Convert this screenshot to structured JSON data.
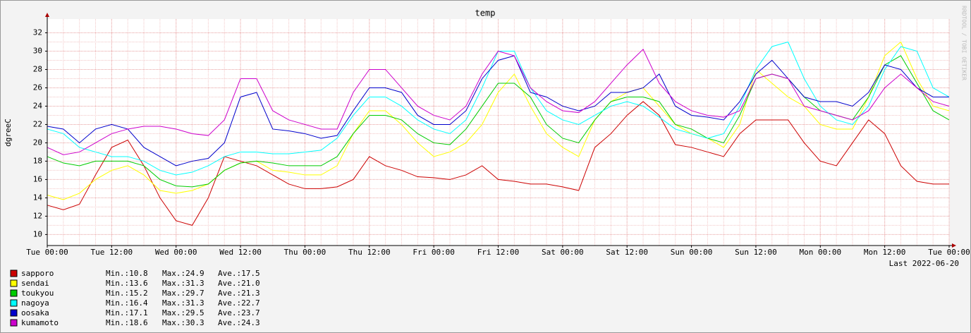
{
  "chart_data": {
    "type": "line",
    "title": "temp",
    "y_label": "dgreeC",
    "footer": "Last 2022-06-20",
    "watermark": "RRDTOOL / TOBI OETIKER",
    "x": [
      "Tue 00:00",
      "Tue 03:00",
      "Tue 06:00",
      "Tue 09:00",
      "Tue 12:00",
      "Tue 15:00",
      "Tue 18:00",
      "Tue 21:00",
      "Wed 00:00",
      "Wed 03:00",
      "Wed 06:00",
      "Wed 09:00",
      "Wed 12:00",
      "Wed 15:00",
      "Wed 18:00",
      "Wed 21:00",
      "Thu 00:00",
      "Thu 03:00",
      "Thu 06:00",
      "Thu 09:00",
      "Thu 12:00",
      "Thu 15:00",
      "Thu 18:00",
      "Thu 21:00",
      "Fri 00:00",
      "Fri 03:00",
      "Fri 06:00",
      "Fri 09:00",
      "Fri 12:00",
      "Fri 15:00",
      "Fri 18:00",
      "Fri 21:00",
      "Sat 00:00",
      "Sat 03:00",
      "Sat 06:00",
      "Sat 09:00",
      "Sat 12:00",
      "Sat 15:00",
      "Sat 18:00",
      "Sat 21:00",
      "Sun 00:00",
      "Sun 03:00",
      "Sun 06:00",
      "Sun 09:00",
      "Sun 12:00",
      "Sun 15:00",
      "Sun 18:00",
      "Sun 21:00",
      "Mon 00:00",
      "Mon 03:00",
      "Mon 06:00",
      "Mon 09:00",
      "Mon 12:00",
      "Mon 15:00",
      "Mon 18:00",
      "Mon 21:00",
      "Tue 00:00"
    ],
    "xticks": [
      "Tue 00:00",
      "Tue 12:00",
      "Wed 00:00",
      "Wed 12:00",
      "Thu 00:00",
      "Thu 12:00",
      "Fri 00:00",
      "Fri 12:00",
      "Sat 00:00",
      "Sat 12:00",
      "Sun 00:00",
      "Sun 12:00",
      "Mon 00:00",
      "Mon 12:00",
      "Tue 00:00"
    ],
    "ylim": [
      8.8,
      33.5
    ],
    "yticks": [
      10,
      12,
      14,
      16,
      18,
      20,
      22,
      24,
      26,
      28,
      30,
      32
    ],
    "grid": true,
    "series": [
      {
        "name": "sapporo",
        "color": "#cc0000",
        "stats": [
          {
            "value": 10.8,
            "label": "Min.:10.8"
          },
          {
            "value": 24.9,
            "label": "Max.:24.9"
          },
          {
            "value": 17.5,
            "label": "Ave.:17.5"
          }
        ],
        "values": [
          13.2,
          12.7,
          13.3,
          16.5,
          19.5,
          20.3,
          17.5,
          14.0,
          11.5,
          11.0,
          14.0,
          18.5,
          18.0,
          17.5,
          16.5,
          15.5,
          15.0,
          15.0,
          15.2,
          16.0,
          18.5,
          17.5,
          17.0,
          16.3,
          16.2,
          16.0,
          16.5,
          17.5,
          16.0,
          15.8,
          15.5,
          15.5,
          15.2,
          14.8,
          19.5,
          21.0,
          23.0,
          24.5,
          23.0,
          19.8,
          19.5,
          19.0,
          18.5,
          21.0,
          22.5,
          22.5,
          22.5,
          20.0,
          18.0,
          17.5,
          20.0,
          22.5,
          21.0,
          17.5,
          15.8,
          15.5,
          15.5
        ]
      },
      {
        "name": "sendai",
        "color": "#ffff00",
        "stats": [
          {
            "value": 13.6,
            "label": "Min.:13.6"
          },
          {
            "value": 31.3,
            "label": "Max.:31.3"
          },
          {
            "value": 21.0,
            "label": "Ave.:21.0"
          }
        ],
        "values": [
          14.3,
          13.8,
          14.5,
          16.0,
          17.0,
          17.5,
          16.5,
          14.8,
          14.5,
          14.8,
          15.5,
          17.0,
          17.8,
          18.0,
          17.0,
          16.8,
          16.5,
          16.5,
          17.5,
          21.0,
          23.5,
          23.5,
          22.0,
          20.0,
          18.5,
          19.0,
          20.0,
          22.0,
          25.5,
          27.5,
          24.0,
          21.0,
          19.5,
          18.5,
          22.5,
          24.5,
          25.5,
          26.0,
          24.0,
          22.0,
          21.0,
          20.5,
          19.5,
          22.0,
          28.0,
          26.5,
          25.0,
          24.0,
          22.0,
          21.5,
          21.5,
          25.0,
          29.5,
          31.0,
          27.0,
          24.0,
          23.5
        ]
      },
      {
        "name": "toukyou",
        "color": "#00cc00",
        "stats": [
          {
            "value": 15.2,
            "label": "Min.:15.2"
          },
          {
            "value": 29.7,
            "label": "Max.:29.7"
          },
          {
            "value": 21.3,
            "label": "Ave.:21.3"
          }
        ],
        "values": [
          18.5,
          17.8,
          17.5,
          18.0,
          18.0,
          18.0,
          17.5,
          16.0,
          15.3,
          15.2,
          15.5,
          17.0,
          17.8,
          18.0,
          17.8,
          17.5,
          17.5,
          17.5,
          18.5,
          21.0,
          23.0,
          23.0,
          22.5,
          21.0,
          20.0,
          19.8,
          21.5,
          24.0,
          26.5,
          26.5,
          25.0,
          22.0,
          20.5,
          20.0,
          22.5,
          24.5,
          25.0,
          25.0,
          24.5,
          22.0,
          21.5,
          20.5,
          20.0,
          23.0,
          27.0,
          27.5,
          27.0,
          25.0,
          23.5,
          23.0,
          22.5,
          25.0,
          28.5,
          29.5,
          26.5,
          23.5,
          22.5
        ]
      },
      {
        "name": "nagoya",
        "color": "#00ffff",
        "stats": [
          {
            "value": 16.4,
            "label": "Min.:16.4"
          },
          {
            "value": 31.3,
            "label": "Max.:31.3"
          },
          {
            "value": 22.7,
            "label": "Ave.:22.7"
          }
        ],
        "values": [
          21.5,
          21.0,
          19.5,
          19.0,
          18.5,
          18.5,
          18.0,
          17.0,
          16.5,
          16.8,
          17.5,
          18.5,
          19.0,
          19.0,
          18.8,
          18.8,
          19.0,
          19.2,
          20.5,
          23.0,
          25.0,
          25.0,
          24.0,
          22.5,
          21.5,
          21.0,
          22.5,
          26.0,
          30.0,
          30.0,
          26.0,
          23.5,
          22.5,
          22.0,
          23.0,
          24.0,
          24.5,
          24.0,
          22.8,
          21.5,
          21.0,
          20.5,
          21.0,
          24.0,
          28.0,
          30.5,
          31.0,
          27.0,
          24.0,
          22.5,
          22.0,
          24.0,
          28.0,
          30.5,
          30.0,
          26.0,
          25.0
        ]
      },
      {
        "name": "oosaka",
        "color": "#0000cc",
        "stats": [
          {
            "value": 17.1,
            "label": "Min.:17.1"
          },
          {
            "value": 29.5,
            "label": "Max.:29.5"
          },
          {
            "value": 23.7,
            "label": "Ave.:23.7"
          }
        ],
        "values": [
          21.8,
          21.5,
          20.0,
          21.5,
          22.0,
          21.5,
          19.5,
          18.5,
          17.5,
          18.0,
          18.3,
          20.0,
          25.0,
          25.5,
          21.5,
          21.3,
          21.0,
          20.5,
          20.8,
          23.5,
          26.0,
          26.0,
          25.5,
          23.0,
          22.0,
          22.0,
          23.5,
          27.0,
          29.0,
          29.5,
          25.5,
          25.0,
          24.0,
          23.5,
          24.0,
          25.5,
          25.5,
          26.0,
          27.5,
          24.0,
          23.0,
          22.8,
          22.5,
          24.5,
          27.5,
          29.0,
          27.0,
          25.0,
          24.5,
          24.5,
          24.0,
          25.5,
          28.5,
          28.0,
          26.0,
          25.0,
          25.0
        ]
      },
      {
        "name": "kumamoto",
        "color": "#cc00cc",
        "stats": [
          {
            "value": 18.6,
            "label": "Min.:18.6"
          },
          {
            "value": 30.3,
            "label": "Max.:30.3"
          },
          {
            "value": 24.3,
            "label": "Ave.:24.3"
          }
        ],
        "values": [
          19.5,
          18.7,
          19.0,
          20.0,
          21.0,
          21.5,
          21.8,
          21.8,
          21.5,
          21.0,
          20.8,
          22.5,
          27.0,
          27.0,
          23.5,
          22.5,
          22.0,
          21.5,
          21.5,
          25.5,
          28.0,
          28.0,
          26.0,
          24.0,
          23.0,
          22.5,
          24.0,
          27.5,
          30.0,
          29.5,
          26.0,
          24.5,
          23.5,
          23.3,
          24.5,
          26.5,
          28.5,
          30.2,
          26.5,
          24.5,
          23.5,
          23.0,
          22.8,
          23.5,
          27.0,
          27.5,
          27.0,
          24.0,
          23.5,
          23.0,
          22.5,
          23.5,
          26.0,
          27.5,
          26.0,
          24.5,
          24.0
        ]
      }
    ]
  }
}
